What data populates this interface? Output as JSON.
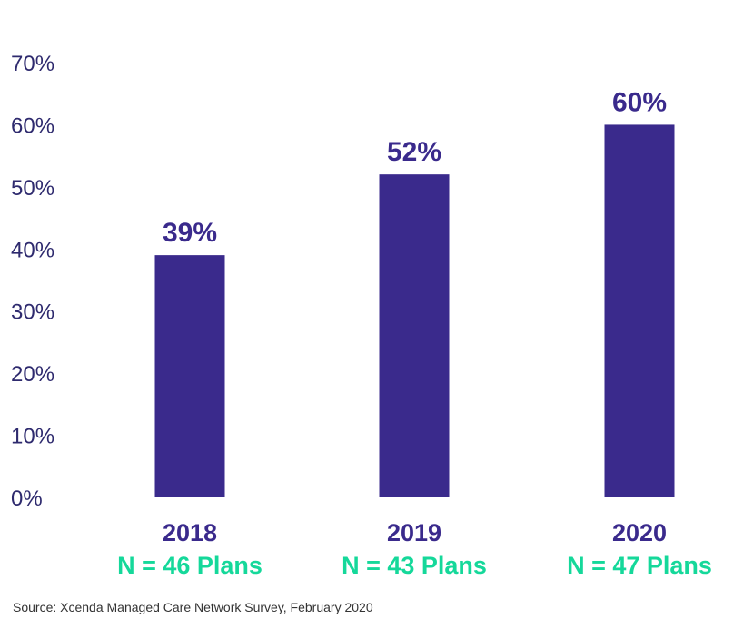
{
  "chart_data": {
    "type": "bar",
    "categories": [
      "2018",
      "2019",
      "2020"
    ],
    "category_sublabels": [
      "N = 46 Plans",
      "N = 43 Plans",
      "N = 47 Plans"
    ],
    "values": [
      39,
      52,
      60
    ],
    "value_labels": [
      "39%",
      "52%",
      "60%"
    ],
    "ylim": [
      0,
      70
    ],
    "y_ticks": [
      0,
      10,
      20,
      30,
      40,
      50,
      60,
      70
    ],
    "y_tick_labels": [
      "0%",
      "10%",
      "20%",
      "30%",
      "40%",
      "50%",
      "60%",
      "70%"
    ],
    "grid": false,
    "legend": "none",
    "colors": {
      "bar": "#3a2a8c",
      "value_label": "#3a2a8c",
      "category_label": "#3a2a8c",
      "sublabel": "#15d89a",
      "tick_label": "#2e2a6e"
    }
  },
  "source": "Source: Xcenda Managed Care Network Survey, February 2020"
}
